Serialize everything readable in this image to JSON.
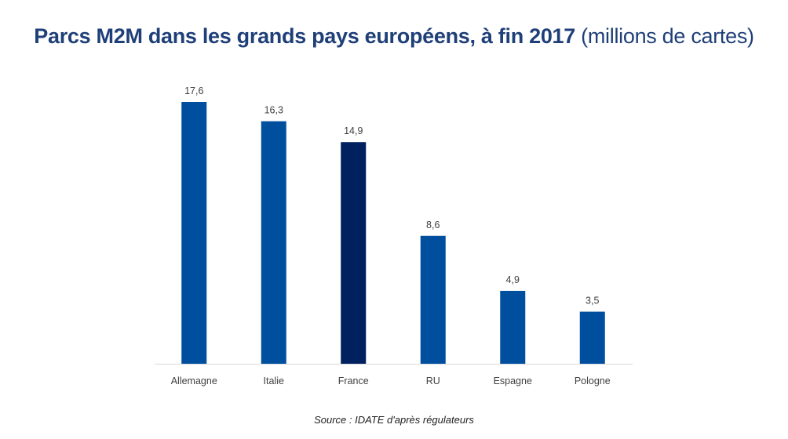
{
  "chart_data": {
    "type": "bar",
    "title": "Parcs M2M dans les grands pays européens, à fin 2017",
    "subtitle": "(millions de cartes)",
    "categories": [
      "Allemagne",
      "Italie",
      "France",
      "RU",
      "Espagne",
      "Pologne"
    ],
    "values": [
      17.6,
      16.3,
      14.9,
      8.6,
      4.9,
      3.5
    ],
    "data_labels": [
      "17,6",
      "16,3",
      "14,9",
      "8,6",
      "4,9",
      "3,5"
    ],
    "colors": [
      "#004f9e",
      "#004f9e",
      "#002060",
      "#004f9e",
      "#004f9e",
      "#004f9e"
    ],
    "ylim": [
      0,
      17.6
    ],
    "grid": false,
    "legend": "none",
    "xlabel": "",
    "ylabel": "",
    "source": "Source : IDATE d'après régulateurs"
  }
}
